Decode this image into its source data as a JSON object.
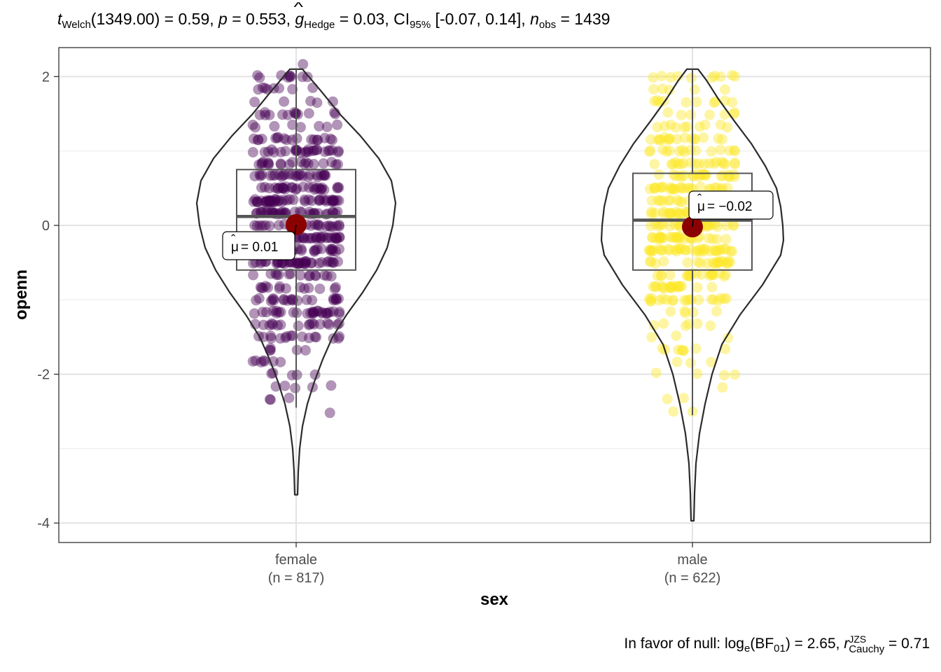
{
  "subtitle": {
    "t_letter": "t",
    "t_sub": "Welch",
    "t_rest": "(1349.00) = 0.59, ",
    "p_letter": "p",
    "p_rest": " = 0.553, ",
    "g_letter": "g",
    "g_sub": "Hedge",
    "g_rest": " = 0.03, CI",
    "ci_sub": "95%",
    "ci_rest": " [-0.07, 0.14], ",
    "n_letter": "n",
    "n_sub": "obs",
    "n_rest": " = 1439"
  },
  "caption": {
    "prefix": "In favor of null: log",
    "log_sub": "e",
    "bf": "(BF",
    "bf_sub": "01",
    "mid": ") = 2.65, ",
    "r_letter": "r",
    "r_sup": "JZS",
    "r_sub": "Cauchy",
    "end": " = 0.71"
  },
  "chart_data": {
    "type": "violin-box-scatter",
    "xlabel": "sex",
    "ylabel": "openn",
    "ylim": [
      -4.3,
      2.4
    ],
    "y_ticks": [
      "2",
      "0",
      "-2",
      "-4"
    ],
    "y_tick_values": [
      2,
      0,
      -2,
      -4
    ],
    "grid": true,
    "categories": [
      {
        "name": "female",
        "n_label": "(n = 817)",
        "color": "#440154",
        "box": {
          "q1": -0.6,
          "median": 0.12,
          "q3": 0.75,
          "whisker_low": -2.45,
          "whisker_high": 2.1
        },
        "mean": 0.01,
        "mean_label": "= 0.01",
        "min": -3.62,
        "max": 2.1
      },
      {
        "name": "male",
        "n_label": "(n = 622)",
        "color": "#FDE725",
        "box": {
          "q1": -0.6,
          "median": 0.07,
          "q3": 0.7,
          "whisker_low": -2.55,
          "whisker_high": 2.1
        },
        "mean": -0.02,
        "mean_label": "= −0.02",
        "min": -3.97,
        "max": 2.1
      }
    ],
    "mean_color": "#8B0000"
  }
}
